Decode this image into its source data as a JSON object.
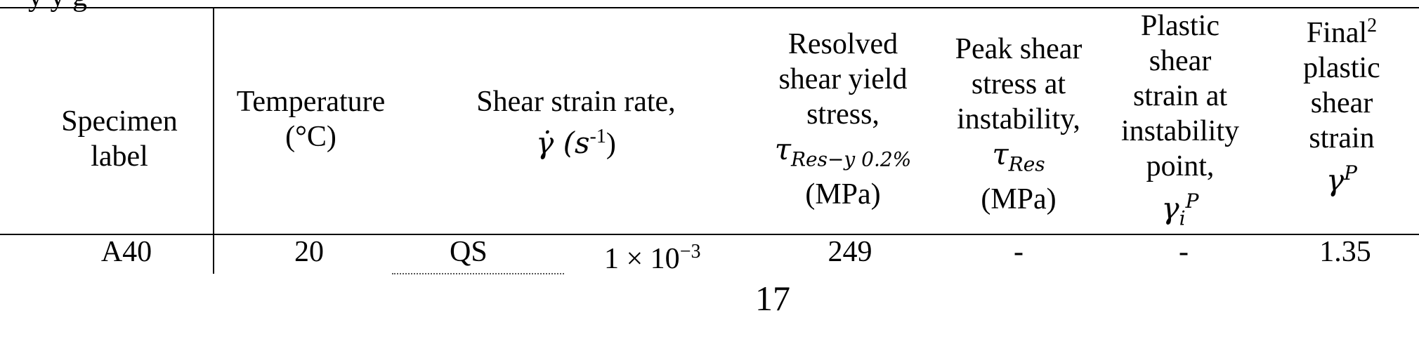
{
  "caption_fragment": "y      y               g",
  "table": {
    "headers": {
      "specimen": [
        "Specimen",
        "label"
      ],
      "temperature": [
        "Temperature",
        "(°C)"
      ],
      "strain_rate": [
        "Shear strain rate,",
        "γ̇ (s",
        "-1",
        ")"
      ],
      "resolved_yield": [
        "Resolved",
        "shear yield",
        "stress,",
        "τ",
        "Res−y 0.2%",
        "(MPa)"
      ],
      "peak_shear": [
        "Peak shear",
        "stress at",
        "instability,",
        "τ",
        "Res",
        "(MPa)"
      ],
      "plastic_instability": [
        "Plastic",
        "shear",
        "strain at",
        "instability",
        "point,",
        "γ",
        "i",
        "P"
      ],
      "final_plastic": [
        "Final",
        "2",
        "plastic",
        "shear",
        "strain",
        "γ",
        "P"
      ]
    },
    "rows": [
      {
        "specimen": "A40",
        "temperature": "20",
        "rate_type": "QS",
        "rate_value": "1 × 10",
        "rate_exponent": "−3",
        "resolved_yield": "249",
        "peak_shear": "-",
        "plastic_instability": "-",
        "final_plastic": "1.35"
      }
    ]
  },
  "page_number": "17"
}
